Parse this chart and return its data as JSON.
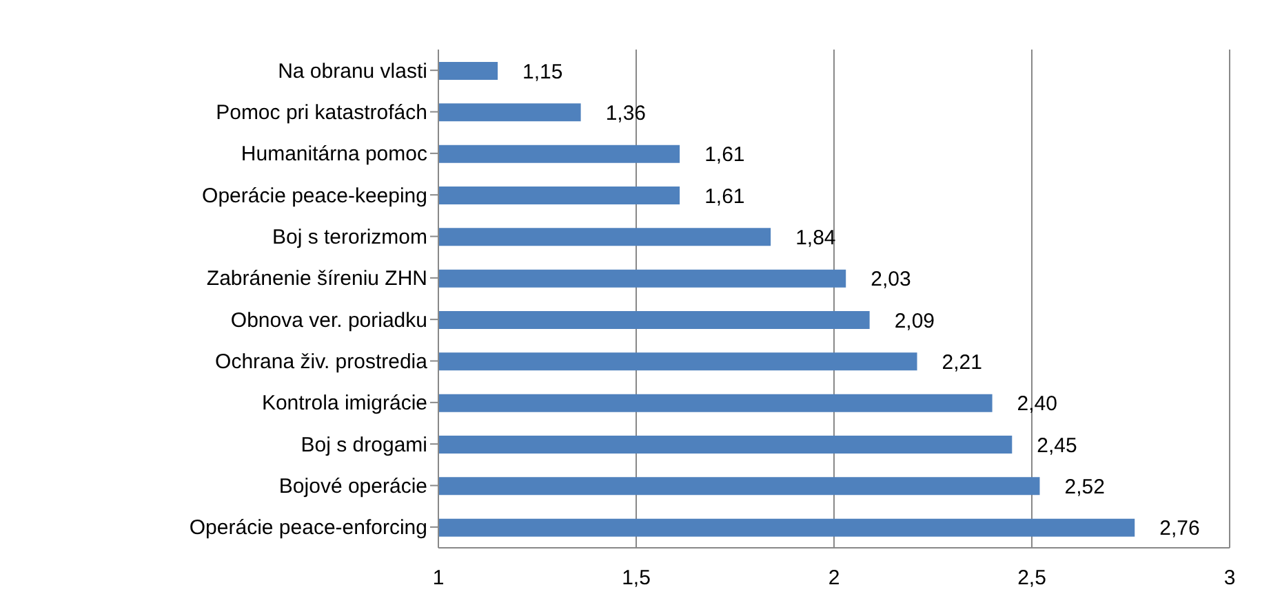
{
  "chart_data": {
    "type": "bar",
    "orientation": "horizontal",
    "categories": [
      "Na obranu vlasti",
      "Pomoc pri katastrofách",
      "Humanitárna pomoc",
      "Operácie peace-keeping",
      "Boj s terorizmom",
      "Zabránenie šíreniu ZHN",
      "Obnova ver. poriadku",
      "Ochrana živ. prostredia",
      "Kontrola imigrácie",
      "Boj s drogami",
      "Bojové operácie",
      "Operácie peace-enforcing"
    ],
    "values": [
      1.15,
      1.36,
      1.61,
      1.61,
      1.84,
      2.03,
      2.09,
      2.21,
      2.4,
      2.45,
      2.52,
      2.76
    ],
    "value_labels": [
      "1,15",
      "1,36",
      "1,61",
      "1,61",
      "1,84",
      "2,03",
      "2,09",
      "2,21",
      "2,40",
      "2,45",
      "2,52",
      "2,76"
    ],
    "color": "#4f81bd",
    "xlim": [
      1,
      3
    ],
    "xticks": [
      1,
      {
        "value": 1.5,
        "label": "1,5"
      },
      2,
      {
        "value": 2.5,
        "label": "2,5"
      },
      3
    ],
    "grid": "x",
    "legend": false
  }
}
